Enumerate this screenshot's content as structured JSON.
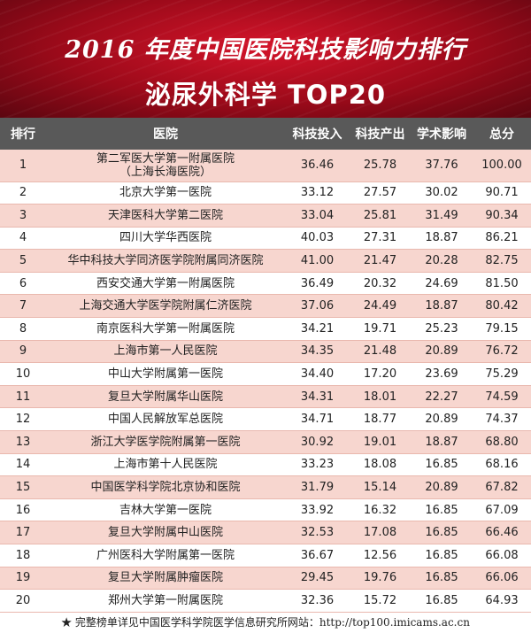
{
  "header": {
    "title_line1": "2016 年度中国医院科技影响力排行",
    "title_line2": "泌尿外科学 TOP20"
  },
  "columns": [
    "排行",
    "医院",
    "科技投入",
    "科技产出",
    "学术影响",
    "总分"
  ],
  "rows": [
    {
      "rank": "1",
      "hospital": "第二军医大学第一附属医院",
      "hospital_line2": "（上海长海医院）",
      "input": "36.46",
      "output": "25.78",
      "impact": "37.76",
      "total": "100.00"
    },
    {
      "rank": "2",
      "hospital": "北京大学第一医院",
      "input": "33.12",
      "output": "27.57",
      "impact": "30.02",
      "total": "90.71"
    },
    {
      "rank": "3",
      "hospital": "天津医科大学第二医院",
      "input": "33.04",
      "output": "25.81",
      "impact": "31.49",
      "total": "90.34"
    },
    {
      "rank": "4",
      "hospital": "四川大学华西医院",
      "input": "40.03",
      "output": "27.31",
      "impact": "18.87",
      "total": "86.21"
    },
    {
      "rank": "5",
      "hospital": "华中科技大学同济医学院附属同济医院",
      "input": "41.00",
      "output": "21.47",
      "impact": "20.28",
      "total": "82.75"
    },
    {
      "rank": "6",
      "hospital": "西安交通大学第一附属医院",
      "input": "36.49",
      "output": "20.32",
      "impact": "24.69",
      "total": "81.50"
    },
    {
      "rank": "7",
      "hospital": "上海交通大学医学院附属仁济医院",
      "input": "37.06",
      "output": "24.49",
      "impact": "18.87",
      "total": "80.42"
    },
    {
      "rank": "8",
      "hospital": "南京医科大学第一附属医院",
      "input": "34.21",
      "output": "19.71",
      "impact": "25.23",
      "total": "79.15"
    },
    {
      "rank": "9",
      "hospital": "上海市第一人民医院",
      "input": "34.35",
      "output": "21.48",
      "impact": "20.89",
      "total": "76.72"
    },
    {
      "rank": "10",
      "hospital": "中山大学附属第一医院",
      "input": "34.40",
      "output": "17.20",
      "impact": "23.69",
      "total": "75.29"
    },
    {
      "rank": "11",
      "hospital": "复旦大学附属华山医院",
      "input": "34.31",
      "output": "18.01",
      "impact": "22.27",
      "total": "74.59"
    },
    {
      "rank": "12",
      "hospital": "中国人民解放军总医院",
      "input": "34.71",
      "output": "18.77",
      "impact": "20.89",
      "total": "74.37"
    },
    {
      "rank": "13",
      "hospital": "浙江大学医学院附属第一医院",
      "input": "30.92",
      "output": "19.01",
      "impact": "18.87",
      "total": "68.80"
    },
    {
      "rank": "14",
      "hospital": "上海市第十人民医院",
      "input": "33.23",
      "output": "18.08",
      "impact": "16.85",
      "total": "68.16"
    },
    {
      "rank": "15",
      "hospital": "中国医学科学院北京协和医院",
      "input": "31.79",
      "output": "15.14",
      "impact": "20.89",
      "total": "67.82"
    },
    {
      "rank": "16",
      "hospital": "吉林大学第一医院",
      "input": "33.92",
      "output": "16.32",
      "impact": "16.85",
      "total": "67.09"
    },
    {
      "rank": "17",
      "hospital": "复旦大学附属中山医院",
      "input": "32.53",
      "output": "17.08",
      "impact": "16.85",
      "total": "66.46"
    },
    {
      "rank": "18",
      "hospital": "广州医科大学附属第一医院",
      "input": "36.67",
      "output": "12.56",
      "impact": "16.85",
      "total": "66.08"
    },
    {
      "rank": "19",
      "hospital": "复旦大学附属肿瘤医院",
      "input": "29.45",
      "output": "19.76",
      "impact": "16.85",
      "total": "66.06"
    },
    {
      "rank": "20",
      "hospital": "郑州大学第一附属医院",
      "input": "32.36",
      "output": "15.72",
      "impact": "16.85",
      "total": "64.93"
    }
  ],
  "footer": {
    "note": "★ 完整榜单详见中国医学科学院医学信息研究所网站：http://top100.imicams.ac.cn"
  },
  "colors": {
    "header_red": "#b8101f",
    "table_header": "#595959",
    "row_pink": "#f7d6cf"
  }
}
